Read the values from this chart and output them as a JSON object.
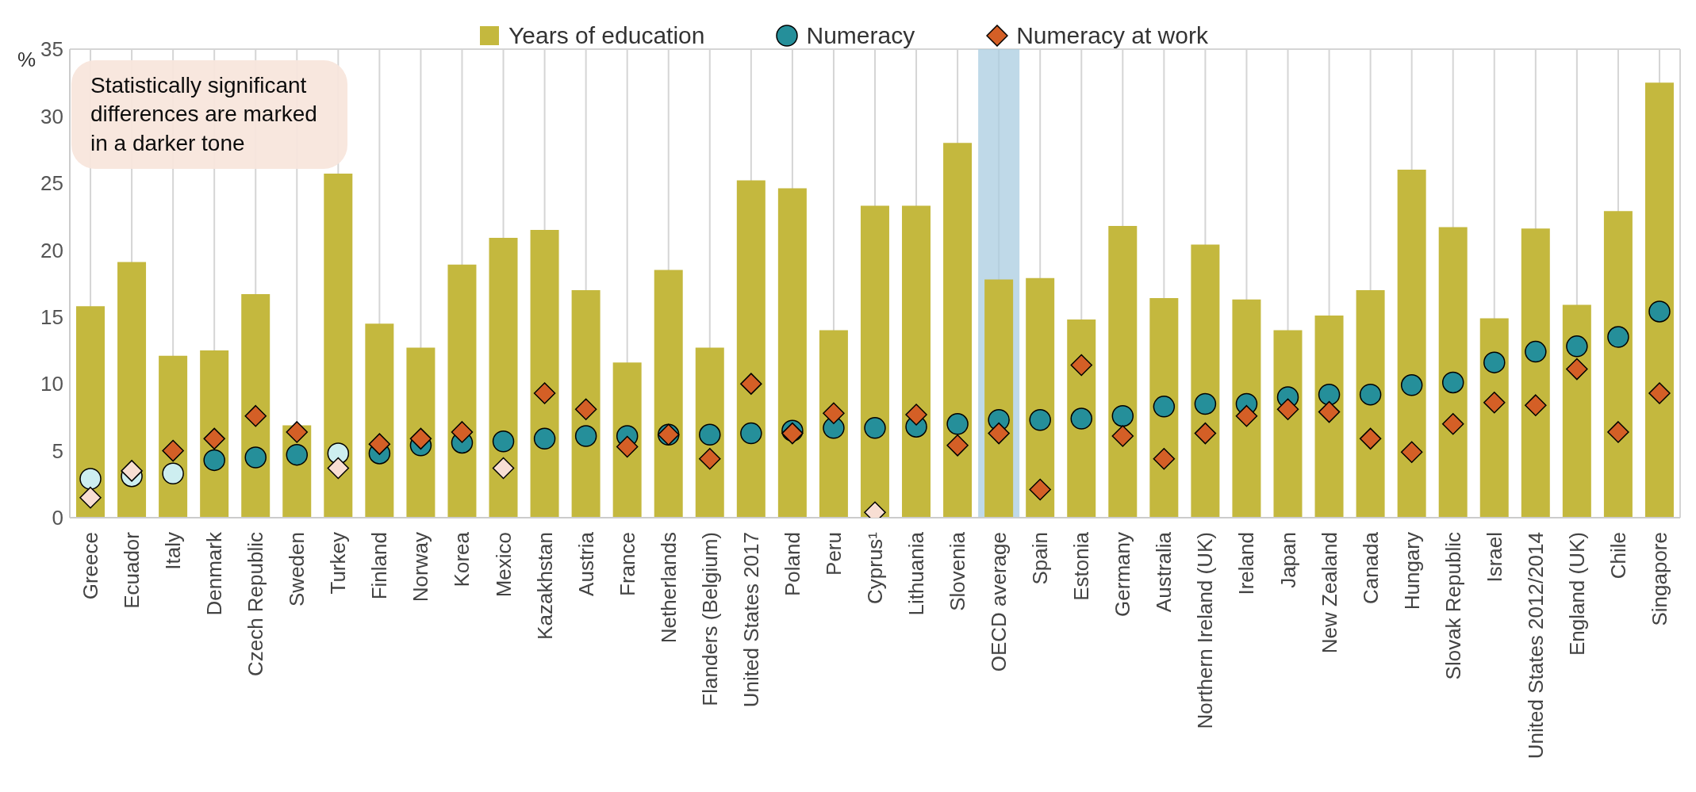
{
  "chart_data": {
    "type": "bar",
    "ylabel": "%",
    "legend": "top",
    "categories": [
      "Greece",
      "Ecuador",
      "Italy",
      "Denmark",
      "Czech Republic",
      "Sweden",
      "Turkey",
      "Finland",
      "Norway",
      "Korea",
      "Mexico",
      "Kazakhstan",
      "Austria",
      "France",
      "Netherlands",
      "Flanders (Belgium)",
      "United States 2017",
      "Poland",
      "Peru",
      "Cyprus¹",
      "Lithuania",
      "Slovenia",
      "OECD average",
      "Spain",
      "Estonia",
      "Germany",
      "Australia",
      "Northern Ireland (UK)",
      "Ireland",
      "Japan",
      "New Zealand",
      "Canada",
      "Hungary",
      "Slovak Republic",
      "Israel",
      "United States 2012/2014",
      "England (UK)",
      "Chile",
      "Singapore"
    ],
    "series": [
      {
        "name": "Years of education",
        "color": "#c4b83e",
        "values": [
          15.8,
          19.1,
          12.1,
          12.5,
          16.7,
          6.9,
          25.7,
          14.5,
          12.7,
          18.9,
          20.9,
          21.5,
          17.0,
          11.6,
          18.5,
          12.7,
          25.2,
          24.6,
          14.0,
          23.3,
          23.3,
          28.0,
          17.8,
          17.9,
          14.8,
          21.8,
          16.4,
          20.4,
          16.3,
          14.0,
          15.1,
          17.0,
          26.0,
          21.7,
          14.9,
          21.6,
          15.9,
          22.9,
          32.5
        ]
      },
      {
        "name": "Numeracy",
        "type": "scatter",
        "marker": "circle",
        "color": "#258f9a",
        "colors": [
          "#cdeef0",
          "#cdeef0",
          "#cdeef0",
          "#258f9a",
          "#258f9a",
          "#258f9a",
          "#cdeef0",
          "#258f9a",
          "#258f9a",
          "#258f9a",
          "#258f9a",
          "#258f9a",
          "#258f9a",
          "#258f9a",
          "#258f9a",
          "#258f9a",
          "#258f9a",
          "#258f9a",
          "#258f9a",
          "#258f9a",
          "#258f9a",
          "#258f9a",
          "#258f9a",
          "#258f9a",
          "#258f9a",
          "#258f9a",
          "#258f9a",
          "#258f9a",
          "#258f9a",
          "#258f9a",
          "#258f9a",
          "#258f9a",
          "#258f9a",
          "#258f9a",
          "#258f9a",
          "#258f9a",
          "#258f9a",
          "#258f9a",
          "#258f9a"
        ],
        "values": [
          2.9,
          3.1,
          3.3,
          4.3,
          4.5,
          4.7,
          4.8,
          4.8,
          5.4,
          5.6,
          5.7,
          5.9,
          6.1,
          6.1,
          6.2,
          6.2,
          6.3,
          6.5,
          6.7,
          6.7,
          6.8,
          7.0,
          7.3,
          7.3,
          7.4,
          7.6,
          8.3,
          8.5,
          8.5,
          9.0,
          9.2,
          9.2,
          9.9,
          10.1,
          11.6,
          12.4,
          12.8,
          13.5,
          15.4
        ]
      },
      {
        "name": "Numeracy at work",
        "type": "scatter",
        "marker": "diamond",
        "color": "#d45f26",
        "colors": [
          "#f8ded3",
          "#f8ded3",
          "#d45f26",
          "#d45f26",
          "#d45f26",
          "#d45f26",
          "#f8ded3",
          "#d45f26",
          "#d45f26",
          "#d45f26",
          "#f8ded3",
          "#d45f26",
          "#d45f26",
          "#d45f26",
          "#d45f26",
          "#d45f26",
          "#d45f26",
          "#d45f26",
          "#d45f26",
          "#f8ded3",
          "#d45f26",
          "#d45f26",
          "#d45f26",
          "#d45f26",
          "#d45f26",
          "#d45f26",
          "#d45f26",
          "#d45f26",
          "#d45f26",
          "#d45f26",
          "#d45f26",
          "#d45f26",
          "#d45f26",
          "#d45f26",
          "#d45f26",
          "#d45f26",
          "#d45f26",
          "#d45f26",
          "#d45f26"
        ],
        "values": [
          1.5,
          3.5,
          5.0,
          5.9,
          7.6,
          6.4,
          3.7,
          5.5,
          5.9,
          6.4,
          3.7,
          9.3,
          8.1,
          5.3,
          6.2,
          4.4,
          10.0,
          6.3,
          7.8,
          0.4,
          7.7,
          5.4,
          6.3,
          2.1,
          11.4,
          6.1,
          4.4,
          6.3,
          7.6,
          8.1,
          7.9,
          5.9,
          4.9,
          7.0,
          8.6,
          8.4,
          11.1,
          6.4,
          9.3
        ]
      }
    ],
    "bands": [
      {
        "axis": "x",
        "from": "OECD average",
        "to": "OECD average",
        "color": "#a9cce0"
      }
    ],
    "annotations": [
      "Statistically significant differences are marked in a darker tone"
    ],
    "ylim": [
      0,
      35
    ],
    "yticks": [
      0,
      5,
      10,
      15,
      20,
      25,
      30,
      35
    ],
    "grid": true
  }
}
